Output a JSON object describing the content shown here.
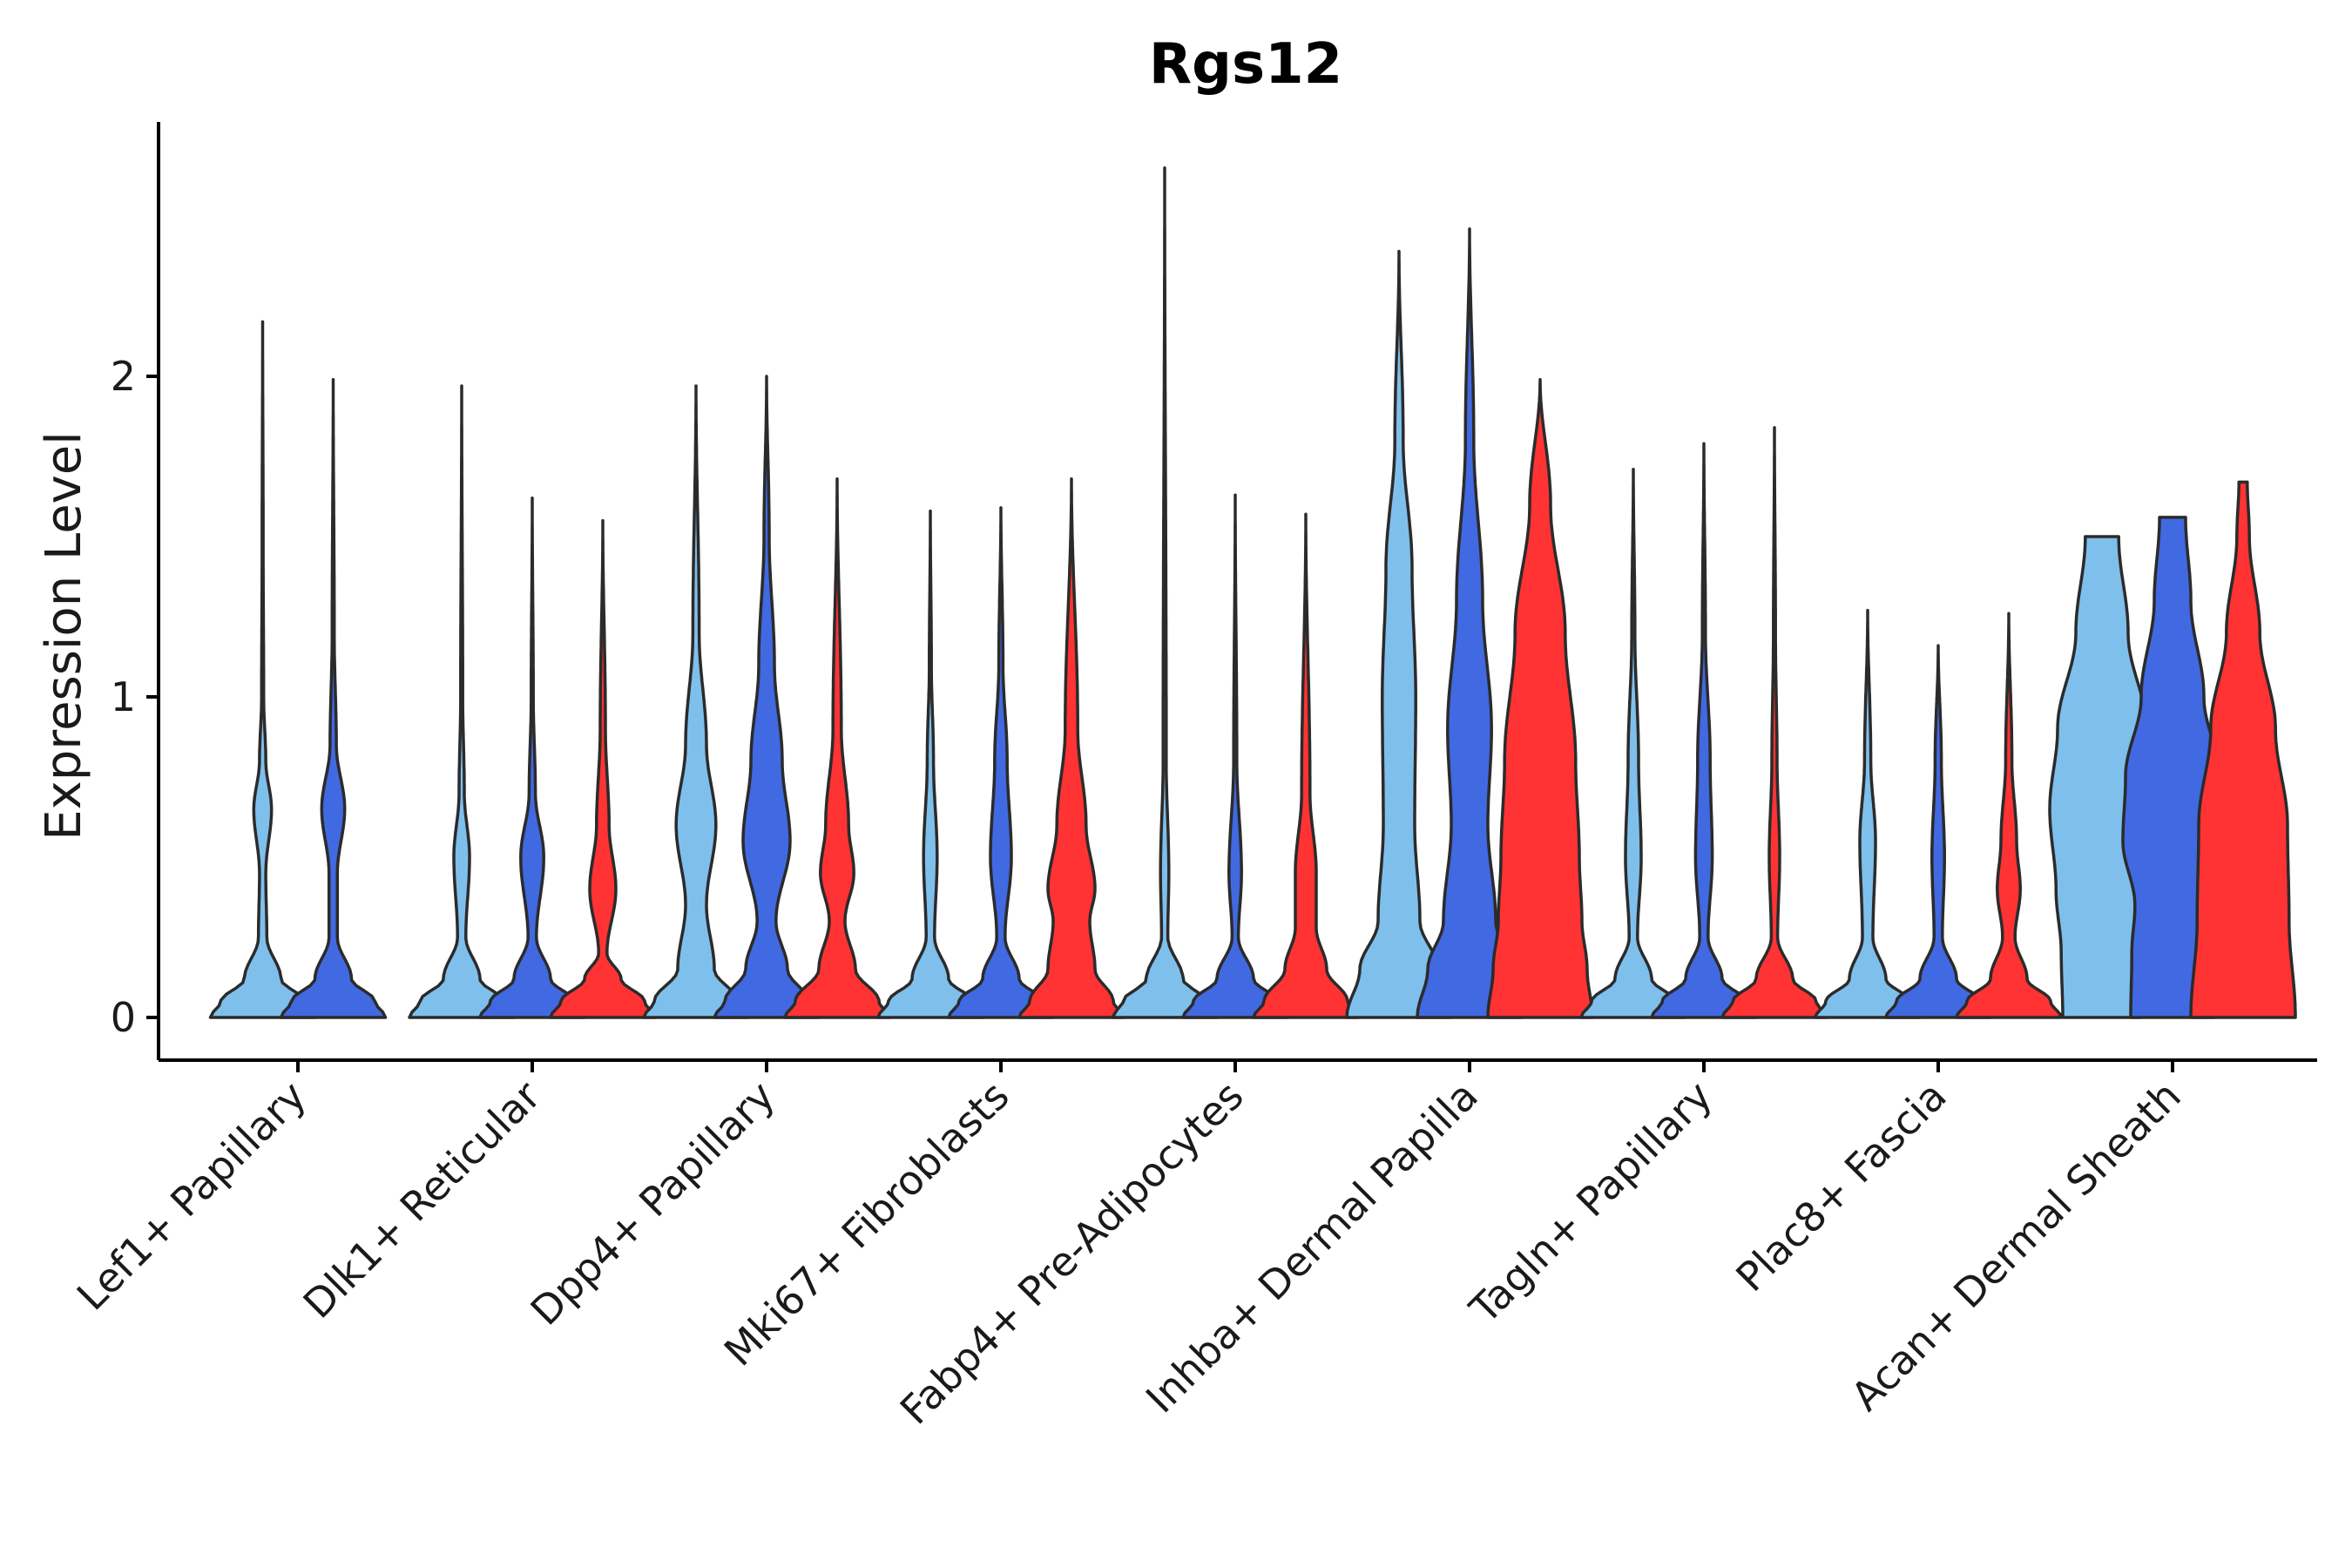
{
  "chart_data": {
    "type": "violin",
    "title": "Rgs12",
    "xlabel": "",
    "ylabel": "Expression Level",
    "ylim": [
      -0.13,
      2.78
    ],
    "y_ticks": [
      0,
      1,
      2
    ],
    "grid": false,
    "legend": "none",
    "colors": [
      "#7fbfec",
      "#4169e1",
      "#ff3333"
    ],
    "categories": [
      "Lef1+ Papillary",
      "Dlk1+ Reticular",
      "Dpp4+ Papillary",
      "Mki67+ Fibroblasts",
      "Fabp4+ Pre-Adipocytes",
      "Inhba+ Dermal Papilla",
      "Tagln+ Papillary",
      "Plac8+ Fascia",
      "Acan+ Dermal Sheath"
    ],
    "groups": [
      {
        "category": "Lef1+ Papillary",
        "violins": [
          {
            "color_index": 0,
            "max": 2.17,
            "profile": [
              [
                0,
                1.0
              ],
              [
                0.05,
                0.8
              ],
              [
                0.12,
                0.35
              ],
              [
                0.25,
                0.08
              ],
              [
                0.45,
                0.06
              ],
              [
                0.65,
                0.17
              ],
              [
                0.8,
                0.06
              ],
              [
                1.0,
                0.02
              ],
              [
                1.5,
                0.01
              ],
              [
                2.17,
                0
              ]
            ]
          },
          {
            "color_index": 1,
            "max": 1.99,
            "profile": [
              [
                0,
                1.0
              ],
              [
                0.05,
                0.8
              ],
              [
                0.12,
                0.35
              ],
              [
                0.25,
                0.08
              ],
              [
                0.45,
                0.08
              ],
              [
                0.65,
                0.22
              ],
              [
                0.85,
                0.06
              ],
              [
                1.2,
                0.02
              ],
              [
                1.99,
                0
              ]
            ]
          }
        ]
      },
      {
        "category": "Dlk1+ Reticular",
        "violins": [
          {
            "color_index": 0,
            "max": 1.97,
            "profile": [
              [
                0,
                1.0
              ],
              [
                0.05,
                0.8
              ],
              [
                0.12,
                0.35
              ],
              [
                0.25,
                0.08
              ],
              [
                0.5,
                0.15
              ],
              [
                0.7,
                0.05
              ],
              [
                1.0,
                0.02
              ],
              [
                1.97,
                0
              ]
            ]
          },
          {
            "color_index": 1,
            "max": 1.62,
            "profile": [
              [
                0,
                1.0
              ],
              [
                0.05,
                0.8
              ],
              [
                0.12,
                0.35
              ],
              [
                0.25,
                0.08
              ],
              [
                0.5,
                0.22
              ],
              [
                0.7,
                0.06
              ],
              [
                1.0,
                0.02
              ],
              [
                1.62,
                0
              ]
            ]
          },
          {
            "color_index": 2,
            "max": 1.55,
            "profile": [
              [
                0,
                1.0
              ],
              [
                0.05,
                0.8
              ],
              [
                0.12,
                0.35
              ],
              [
                0.2,
                0.08
              ],
              [
                0.4,
                0.25
              ],
              [
                0.6,
                0.12
              ],
              [
                0.9,
                0.05
              ],
              [
                1.55,
                0
              ]
            ]
          }
        ]
      },
      {
        "category": "Dpp4+ Papillary",
        "violins": [
          {
            "color_index": 0,
            "max": 1.97,
            "profile": [
              [
                0,
                1.0
              ],
              [
                0.05,
                0.8
              ],
              [
                0.15,
                0.35
              ],
              [
                0.35,
                0.2
              ],
              [
                0.6,
                0.38
              ],
              [
                0.85,
                0.2
              ],
              [
                1.2,
                0.06
              ],
              [
                1.97,
                0
              ]
            ]
          },
          {
            "color_index": 1,
            "max": 2.0,
            "profile": [
              [
                0,
                1.0
              ],
              [
                0.05,
                0.8
              ],
              [
                0.15,
                0.4
              ],
              [
                0.3,
                0.18
              ],
              [
                0.55,
                0.45
              ],
              [
                0.8,
                0.3
              ],
              [
                1.1,
                0.15
              ],
              [
                1.5,
                0.05
              ],
              [
                2.0,
                0
              ]
            ]
          },
          {
            "color_index": 2,
            "max": 1.68,
            "profile": [
              [
                0,
                1.0
              ],
              [
                0.05,
                0.8
              ],
              [
                0.15,
                0.35
              ],
              [
                0.3,
                0.15
              ],
              [
                0.45,
                0.32
              ],
              [
                0.6,
                0.22
              ],
              [
                0.9,
                0.08
              ],
              [
                1.68,
                0
              ]
            ]
          }
        ]
      },
      {
        "category": "Mki67+ Fibroblasts",
        "violins": [
          {
            "color_index": 0,
            "max": 1.58,
            "profile": [
              [
                0,
                1.0
              ],
              [
                0.05,
                0.8
              ],
              [
                0.12,
                0.35
              ],
              [
                0.25,
                0.08
              ],
              [
                0.5,
                0.13
              ],
              [
                0.8,
                0.06
              ],
              [
                1.1,
                0.02
              ],
              [
                1.58,
                0
              ]
            ]
          },
          {
            "color_index": 1,
            "max": 1.59,
            "profile": [
              [
                0,
                1.0
              ],
              [
                0.05,
                0.8
              ],
              [
                0.12,
                0.35
              ],
              [
                0.25,
                0.08
              ],
              [
                0.5,
                0.2
              ],
              [
                0.8,
                0.12
              ],
              [
                1.1,
                0.04
              ],
              [
                1.59,
                0
              ]
            ]
          },
          {
            "color_index": 2,
            "max": 1.68,
            "profile": [
              [
                0,
                1.0
              ],
              [
                0.05,
                0.8
              ],
              [
                0.15,
                0.45
              ],
              [
                0.3,
                0.35
              ],
              [
                0.4,
                0.45
              ],
              [
                0.6,
                0.28
              ],
              [
                0.9,
                0.12
              ],
              [
                1.68,
                0
              ]
            ]
          }
        ]
      },
      {
        "category": "Fabp4+ Pre-Adipocytes",
        "violins": [
          {
            "color_index": 0,
            "max": 2.65,
            "profile": [
              [
                0,
                1.0
              ],
              [
                0.05,
                0.8
              ],
              [
                0.12,
                0.35
              ],
              [
                0.25,
                0.06
              ],
              [
                0.45,
                0.08
              ],
              [
                0.8,
                0.03
              ],
              [
                2.65,
                0
              ]
            ]
          },
          {
            "color_index": 1,
            "max": 1.63,
            "profile": [
              [
                0,
                1.0
              ],
              [
                0.05,
                0.8
              ],
              [
                0.12,
                0.35
              ],
              [
                0.25,
                0.06
              ],
              [
                0.45,
                0.12
              ],
              [
                0.8,
                0.03
              ],
              [
                1.63,
                0
              ]
            ]
          },
          {
            "color_index": 2,
            "max": 1.57,
            "profile": [
              [
                0,
                1.0
              ],
              [
                0.05,
                0.8
              ],
              [
                0.15,
                0.4
              ],
              [
                0.28,
                0.2
              ],
              [
                0.45,
                0.2
              ],
              [
                0.7,
                0.08
              ],
              [
                1.57,
                0
              ]
            ]
          }
        ]
      },
      {
        "category": "Inhba+ Dermal Papilla",
        "violins": [
          {
            "color_index": 0,
            "max": 2.39,
            "profile": [
              [
                0,
                1.0
              ],
              [
                0.15,
                0.75
              ],
              [
                0.3,
                0.4
              ],
              [
                0.6,
                0.3
              ],
              [
                1.0,
                0.32
              ],
              [
                1.4,
                0.25
              ],
              [
                1.8,
                0.08
              ],
              [
                2.39,
                0
              ]
            ]
          },
          {
            "color_index": 1,
            "max": 2.46,
            "profile": [
              [
                0,
                1.0
              ],
              [
                0.15,
                0.8
              ],
              [
                0.3,
                0.5
              ],
              [
                0.6,
                0.35
              ],
              [
                0.9,
                0.42
              ],
              [
                1.3,
                0.25
              ],
              [
                1.8,
                0.08
              ],
              [
                2.46,
                0
              ]
            ]
          },
          {
            "color_index": 2,
            "max": 1.99,
            "profile": [
              [
                0,
                1.0
              ],
              [
                0.15,
                0.9
              ],
              [
                0.3,
                0.8
              ],
              [
                0.5,
                0.75
              ],
              [
                0.8,
                0.68
              ],
              [
                1.2,
                0.48
              ],
              [
                1.6,
                0.2
              ],
              [
                1.99,
                0
              ]
            ]
          }
        ]
      },
      {
        "category": "Tagln+ Papillary",
        "violins": [
          {
            "color_index": 0,
            "max": 1.71,
            "profile": [
              [
                0,
                1.0
              ],
              [
                0.05,
                0.8
              ],
              [
                0.12,
                0.35
              ],
              [
                0.25,
                0.08
              ],
              [
                0.5,
                0.15
              ],
              [
                0.8,
                0.1
              ],
              [
                1.2,
                0.03
              ],
              [
                1.71,
                0
              ]
            ]
          },
          {
            "color_index": 1,
            "max": 1.79,
            "profile": [
              [
                0,
                1.0
              ],
              [
                0.05,
                0.8
              ],
              [
                0.12,
                0.35
              ],
              [
                0.25,
                0.08
              ],
              [
                0.5,
                0.16
              ],
              [
                0.8,
                0.12
              ],
              [
                1.2,
                0.03
              ],
              [
                1.79,
                0
              ]
            ]
          },
          {
            "color_index": 2,
            "max": 1.84,
            "profile": [
              [
                0,
                1.0
              ],
              [
                0.05,
                0.8
              ],
              [
                0.12,
                0.35
              ],
              [
                0.25,
                0.06
              ],
              [
                0.5,
                0.1
              ],
              [
                0.8,
                0.05
              ],
              [
                1.2,
                0.02
              ],
              [
                1.84,
                0
              ]
            ]
          }
        ]
      },
      {
        "category": "Plac8+ Fascia",
        "violins": [
          {
            "color_index": 0,
            "max": 1.27,
            "profile": [
              [
                0,
                1.0
              ],
              [
                0.05,
                0.8
              ],
              [
                0.12,
                0.35
              ],
              [
                0.25,
                0.1
              ],
              [
                0.55,
                0.15
              ],
              [
                0.8,
                0.06
              ],
              [
                1.27,
                0
              ]
            ]
          },
          {
            "color_index": 1,
            "max": 1.16,
            "profile": [
              [
                0,
                1.0
              ],
              [
                0.05,
                0.8
              ],
              [
                0.12,
                0.35
              ],
              [
                0.25,
                0.08
              ],
              [
                0.5,
                0.12
              ],
              [
                0.8,
                0.06
              ],
              [
                1.16,
                0
              ]
            ]
          },
          {
            "color_index": 2,
            "max": 1.26,
            "profile": [
              [
                0,
                1.0
              ],
              [
                0.05,
                0.8
              ],
              [
                0.12,
                0.35
              ],
              [
                0.25,
                0.12
              ],
              [
                0.4,
                0.22
              ],
              [
                0.55,
                0.15
              ],
              [
                0.8,
                0.06
              ],
              [
                1.26,
                0
              ]
            ]
          }
        ]
      },
      {
        "category": "Acan+ Dermal Sheath",
        "violins": [
          {
            "color_index": 0,
            "max": 1.5,
            "profile": [
              [
                0,
                0.75
              ],
              [
                0.2,
                0.78
              ],
              [
                0.4,
                0.88
              ],
              [
                0.65,
                1.0
              ],
              [
                0.9,
                0.85
              ],
              [
                1.2,
                0.5
              ],
              [
                1.5,
                0.32
              ]
            ]
          },
          {
            "color_index": 1,
            "max": 1.56,
            "profile": [
              [
                0,
                0.8
              ],
              [
                0.2,
                0.78
              ],
              [
                0.35,
                0.72
              ],
              [
                0.55,
                0.95
              ],
              [
                0.75,
                0.9
              ],
              [
                1.0,
                0.6
              ],
              [
                1.3,
                0.35
              ],
              [
                1.56,
                0.25
              ]
            ]
          },
          {
            "color_index": 2,
            "max": 1.67,
            "profile": [
              [
                0,
                1.0
              ],
              [
                0.3,
                0.88
              ],
              [
                0.6,
                0.85
              ],
              [
                0.9,
                0.62
              ],
              [
                1.2,
                0.32
              ],
              [
                1.5,
                0.12
              ],
              [
                1.67,
                0.08
              ]
            ]
          }
        ]
      }
    ]
  }
}
